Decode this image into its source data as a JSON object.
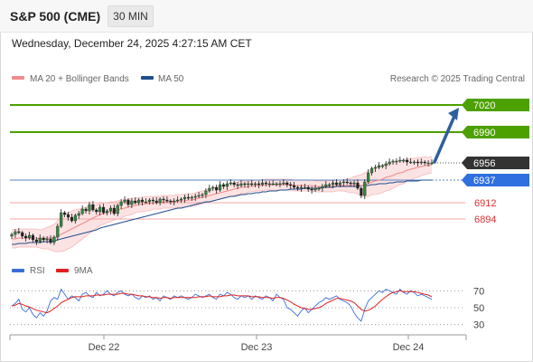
{
  "header": {
    "title": "S&P 500 (CME)",
    "timeframe": "30 MIN",
    "datetime": "Wednesday, December 24, 2025 4:27:15 AM CET"
  },
  "legend": {
    "ma20_label": "MA 20 + Bollinger Bands",
    "ma50_label": "MA 50",
    "ma20_color": "#f08c8c",
    "ma50_color": "#1f4e8c",
    "credit": "Research © 2025 Trading Central"
  },
  "rsi_legend": {
    "rsi_label": "RSI",
    "ma_label": "9MA",
    "rsi_color": "#3a6fd8",
    "ma_color": "#e02020"
  },
  "chart_data": {
    "type": "candlestick",
    "price_range": [
      6860,
      7040
    ],
    "levels": [
      {
        "value": 7020,
        "label": "7020",
        "kind": "resistance",
        "color": "#4ca000"
      },
      {
        "value": 6990,
        "label": "6990",
        "kind": "resistance",
        "color": "#4ca000"
      },
      {
        "value": 6956,
        "label": "6956",
        "kind": "last-price",
        "color": "#333333"
      },
      {
        "value": 6937,
        "label": "6937",
        "kind": "ma50",
        "color": "#2f6fde"
      },
      {
        "value": 6912,
        "label": "6912",
        "kind": "support",
        "color": "#e03030"
      },
      {
        "value": 6894,
        "label": "6894",
        "kind": "support",
        "color": "#e03030"
      }
    ],
    "x_ticks": [
      "Dec 22",
      "Dec 23",
      "Dec 24"
    ],
    "closes": [
      6877,
      6880,
      6879,
      6875,
      6873,
      6876,
      6871,
      6869,
      6873,
      6871,
      6872,
      6868,
      6874,
      6886,
      6901,
      6899,
      6896,
      6892,
      6898,
      6900,
      6905,
      6903,
      6910,
      6904,
      6902,
      6907,
      6901,
      6903,
      6906,
      6900,
      6909,
      6913,
      6915,
      6910,
      6914,
      6912,
      6915,
      6913,
      6913,
      6915,
      6914,
      6912,
      6916,
      6915,
      6914,
      6913,
      6914,
      6915,
      6916,
      6918,
      6917,
      6918,
      6919,
      6920,
      6921,
      6925,
      6928,
      6929,
      6926,
      6932,
      6930,
      6933,
      6934,
      6932,
      6931,
      6933,
      6932,
      6933,
      6932,
      6933,
      6932,
      6934,
      6933,
      6933,
      6933,
      6933,
      6933,
      6934,
      6932,
      6931,
      6929,
      6928,
      6929,
      6929,
      6927,
      6926,
      6928,
      6928,
      6930,
      6932,
      6932,
      6934,
      6932,
      6934,
      6935,
      6934,
      6933,
      6934,
      6928,
      6920,
      6935,
      6945,
      6950,
      6951,
      6953,
      6953,
      6955,
      6957,
      6958,
      6958,
      6959,
      6959,
      6957,
      6957,
      6957,
      6956,
      6957,
      6956,
      6956,
      6956
    ],
    "ma20": [
      6872,
      6872,
      6873,
      6873,
      6873,
      6873,
      6873,
      6873,
      6872,
      6872,
      6873,
      6873,
      6873,
      6875,
      6877,
      6879,
      6881,
      6883,
      6885,
      6887,
      6889,
      6891,
      6893,
      6895,
      6897,
      6899,
      6900,
      6901,
      6902,
      6903,
      6904,
      6905,
      6906,
      6907,
      6908,
      6909,
      6910,
      6910,
      6911,
      6911,
      6912,
      6912,
      6912,
      6913,
      6913,
      6913,
      6913,
      6914,
      6914,
      6914,
      6915,
      6915,
      6916,
      6917,
      6918,
      6919,
      6920,
      6921,
      6922,
      6923,
      6924,
      6925,
      6926,
      6927,
      6928,
      6929,
      6929,
      6930,
      6930,
      6931,
      6931,
      6931,
      6932,
      6932,
      6932,
      6932,
      6932,
      6932,
      6932,
      6932,
      6931,
      6931,
      6931,
      6931,
      6931,
      6931,
      6930,
      6930,
      6930,
      6930,
      6930,
      6930,
      6931,
      6931,
      6931,
      6931,
      6931,
      6932,
      6932,
      6931,
      6932,
      6933,
      6935,
      6936,
      6937,
      6938,
      6940,
      6941,
      6942,
      6944,
      6945,
      6946,
      6948,
      6949,
      6950,
      6951,
      6952,
      6953,
      6953,
      6954
    ],
    "ma50": [
      6866,
      6866,
      6867,
      6867,
      6867,
      6868,
      6868,
      6868,
      6868,
      6869,
      6869,
      6869,
      6870,
      6871,
      6872,
      6873,
      6874,
      6875,
      6876,
      6877,
      6878,
      6879,
      6880,
      6881,
      6882,
      6884,
      6885,
      6886,
      6887,
      6888,
      6889,
      6890,
      6891,
      6892,
      6893,
      6894,
      6895,
      6896,
      6897,
      6898,
      6899,
      6900,
      6901,
      6902,
      6903,
      6904,
      6905,
      6906,
      6906,
      6907,
      6908,
      6909,
      6910,
      6911,
      6912,
      6913,
      6913,
      6914,
      6915,
      6916,
      6917,
      6918,
      6919,
      6919,
      6920,
      6921,
      6921,
      6922,
      6922,
      6923,
      6923,
      6924,
      6924,
      6925,
      6925,
      6925,
      6926,
      6926,
      6926,
      6927,
      6927,
      6927,
      6927,
      6928,
      6928,
      6928,
      6928,
      6928,
      6929,
      6929,
      6929,
      6929,
      6930,
      6930,
      6930,
      6930,
      6930,
      6930,
      6930,
      6931,
      6931,
      6931,
      6932,
      6932,
      6933,
      6933,
      6933,
      6934,
      6934,
      6935,
      6935,
      6935,
      6936,
      6936,
      6936,
      6936,
      6937,
      6937,
      6937,
      6937
    ],
    "bb_width": [
      10,
      10,
      10,
      10,
      10,
      10,
      10,
      10,
      10,
      11,
      12,
      13,
      15,
      17,
      19,
      20,
      20,
      20,
      19,
      18,
      17,
      16,
      15,
      14,
      13,
      12,
      12,
      11,
      11,
      10,
      10,
      10,
      9,
      9,
      9,
      8,
      8,
      8,
      8,
      8,
      7,
      7,
      7,
      7,
      7,
      7,
      7,
      7,
      7,
      7,
      7,
      7,
      7,
      7,
      7,
      7,
      7,
      7,
      7,
      7,
      7,
      7,
      7,
      7,
      7,
      7,
      7,
      6,
      6,
      6,
      6,
      6,
      6,
      6,
      6,
      6,
      6,
      6,
      6,
      6,
      6,
      6,
      6,
      6,
      6,
      6,
      6,
      6,
      6,
      6,
      6,
      6,
      6,
      6,
      6,
      7,
      8,
      9,
      10,
      12,
      13,
      14,
      14,
      15,
      15,
      15,
      15,
      15,
      14,
      14,
      13,
      13,
      12,
      12,
      11,
      11,
      10,
      10,
      9,
      9
    ],
    "forecast_target": 7020,
    "rsi": {
      "range": [
        20,
        80
      ],
      "levels": [
        70,
        50,
        30
      ],
      "rsi": [
        52,
        55,
        60,
        48,
        45,
        50,
        42,
        38,
        44,
        40,
        46,
        58,
        62,
        60,
        72,
        66,
        60,
        64,
        62,
        58,
        66,
        68,
        64,
        62,
        68,
        64,
        66,
        70,
        66,
        64,
        68,
        70,
        66,
        64,
        66,
        62,
        60,
        64,
        62,
        64,
        60,
        62,
        58,
        64,
        62,
        60,
        64,
        62,
        64,
        62,
        60,
        62,
        66,
        64,
        62,
        64,
        66,
        62,
        60,
        66,
        64,
        68,
        66,
        62,
        60,
        64,
        62,
        64,
        60,
        64,
        62,
        60,
        64,
        62,
        58,
        66,
        62,
        60,
        50,
        48,
        44,
        40,
        46,
        50,
        44,
        48,
        52,
        56,
        58,
        62,
        60,
        62,
        64,
        60,
        58,
        56,
        52,
        44,
        38,
        34,
        48,
        58,
        62,
        66,
        70,
        68,
        72,
        70,
        68,
        66,
        72,
        68,
        66,
        70,
        68,
        64,
        66,
        64,
        62,
        60
      ],
      "ma": [
        52,
        53,
        55,
        54,
        52,
        51,
        49,
        47,
        46,
        45,
        44,
        46,
        49,
        52,
        56,
        58,
        60,
        62,
        63,
        63,
        63,
        64,
        64,
        64,
        65,
        65,
        65,
        66,
        66,
        66,
        66,
        67,
        67,
        66,
        66,
        65,
        64,
        64,
        63,
        63,
        62,
        62,
        61,
        62,
        62,
        61,
        62,
        62,
        62,
        62,
        62,
        62,
        62,
        63,
        63,
        63,
        64,
        63,
        63,
        63,
        64,
        64,
        65,
        65,
        64,
        64,
        64,
        64,
        63,
        63,
        63,
        62,
        62,
        62,
        61,
        62,
        62,
        61,
        59,
        57,
        54,
        52,
        50,
        49,
        48,
        48,
        49,
        50,
        52,
        55,
        57,
        59,
        61,
        61,
        60,
        59,
        58,
        56,
        52,
        48,
        46,
        47,
        49,
        52,
        56,
        60,
        63,
        66,
        68,
        69,
        70,
        69,
        69,
        69,
        69,
        68,
        67,
        66,
        65,
        63
      ]
    }
  }
}
